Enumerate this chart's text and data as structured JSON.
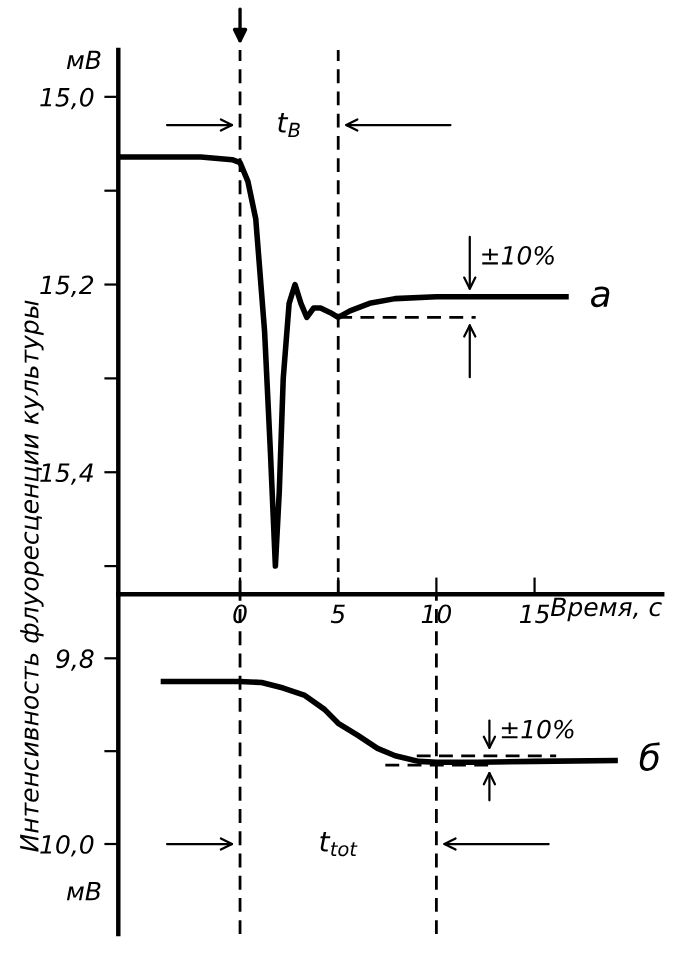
{
  "chart_data": [
    {
      "type": "line",
      "xlabel": "Время, с",
      "ylabel": "Интенсивность флуоресценции культуры",
      "xlim": [
        -6.2,
        21.5
      ],
      "xticks": [
        {
          "value": 0,
          "label": "0"
        },
        5,
        10,
        15
      ],
      "ylim": [
        15.53,
        14.95
      ],
      "yticks": [
        {
          "value": 15.0,
          "label": "15,0"
        },
        {
          "value": 15.1,
          "label": null
        },
        {
          "value": 15.2,
          "label": "15,2"
        },
        {
          "value": 15.3,
          "label": null
        },
        {
          "value": 15.4,
          "label": "15,4"
        },
        {
          "value": 15.5,
          "label": null
        }
      ],
      "series": [
        {
          "name": "а",
          "color": "#000000",
          "x": [
            -6.1,
            -2.0,
            -0.4,
            0,
            0.4,
            0.8,
            1.25,
            1.55,
            1.8,
            2.0,
            2.2,
            2.5,
            2.8,
            3.1,
            3.4,
            3.75,
            4.1,
            4.6,
            5.0,
            5.6,
            6.6,
            7.9,
            10,
            16.6
          ],
          "values": [
            15.064,
            15.064,
            15.067,
            15.07,
            15.09,
            15.13,
            15.25,
            15.38,
            15.5,
            15.42,
            15.3,
            15.22,
            15.2,
            15.22,
            15.235,
            15.225,
            15.225,
            15.23,
            15.235,
            15.228,
            15.22,
            15.215,
            15.213,
            15.213
          ]
        },
        {
          "color": "#000000",
          "line_style": "dashed",
          "x": [
            5,
            12
          ],
          "values": [
            15.235,
            15.235
          ]
        }
      ],
      "ref_lines": [
        {
          "axis": "x",
          "value": 0,
          "label": null,
          "line_style": "dashed"
        },
        {
          "axis": "x",
          "value": 5,
          "label": null,
          "line_style": "dashed"
        }
      ],
      "annotations": [
        "мВ",
        "t$_{В}$",
        "±10%"
      ],
      "tick_labels": "xy",
      "grid": false,
      "legend": false
    },
    {
      "type": "line",
      "xlim": [
        -6.2,
        21.5
      ],
      "ylim": [
        10.097,
        9.731
      ],
      "yticks": [
        {
          "value": 9.8,
          "label": "9,8"
        },
        {
          "value": 9.9,
          "label": null
        },
        {
          "value": 10.0,
          "label": "10,0"
        }
      ],
      "series": [
        {
          "name": "б",
          "color": "#000000",
          "x": [
            -3.9,
            0,
            1.1,
            2.2,
            3.3,
            4.3,
            5.0,
            6.0,
            7.0,
            7.9,
            9.1,
            10,
            12.1,
            15,
            19.1
          ],
          "values": [
            9.825,
            9.825,
            9.826,
            9.832,
            9.84,
            9.855,
            9.87,
            9.883,
            9.897,
            9.905,
            9.911,
            9.912,
            9.912,
            9.911,
            9.91
          ]
        },
        {
          "color": "#000000",
          "line_style": "dashed",
          "x": [
            9,
            16.1
          ],
          "values": [
            9.905,
            9.905
          ]
        },
        {
          "color": "#000000",
          "line_style": "dashed",
          "x": [
            7.4,
            13
          ],
          "values": [
            9.915,
            9.915
          ]
        }
      ],
      "ref_lines": [
        {
          "axis": "x",
          "value": 0,
          "label": null,
          "line_style": "dashed"
        },
        {
          "axis": "x",
          "value": 10,
          "label": null,
          "line_style": "dashed"
        }
      ],
      "annotations": [
        "мВ",
        "t$_{tot}$",
        "±10%"
      ],
      "tick_labels": "y",
      "grid": false,
      "legend": false
    }
  ]
}
